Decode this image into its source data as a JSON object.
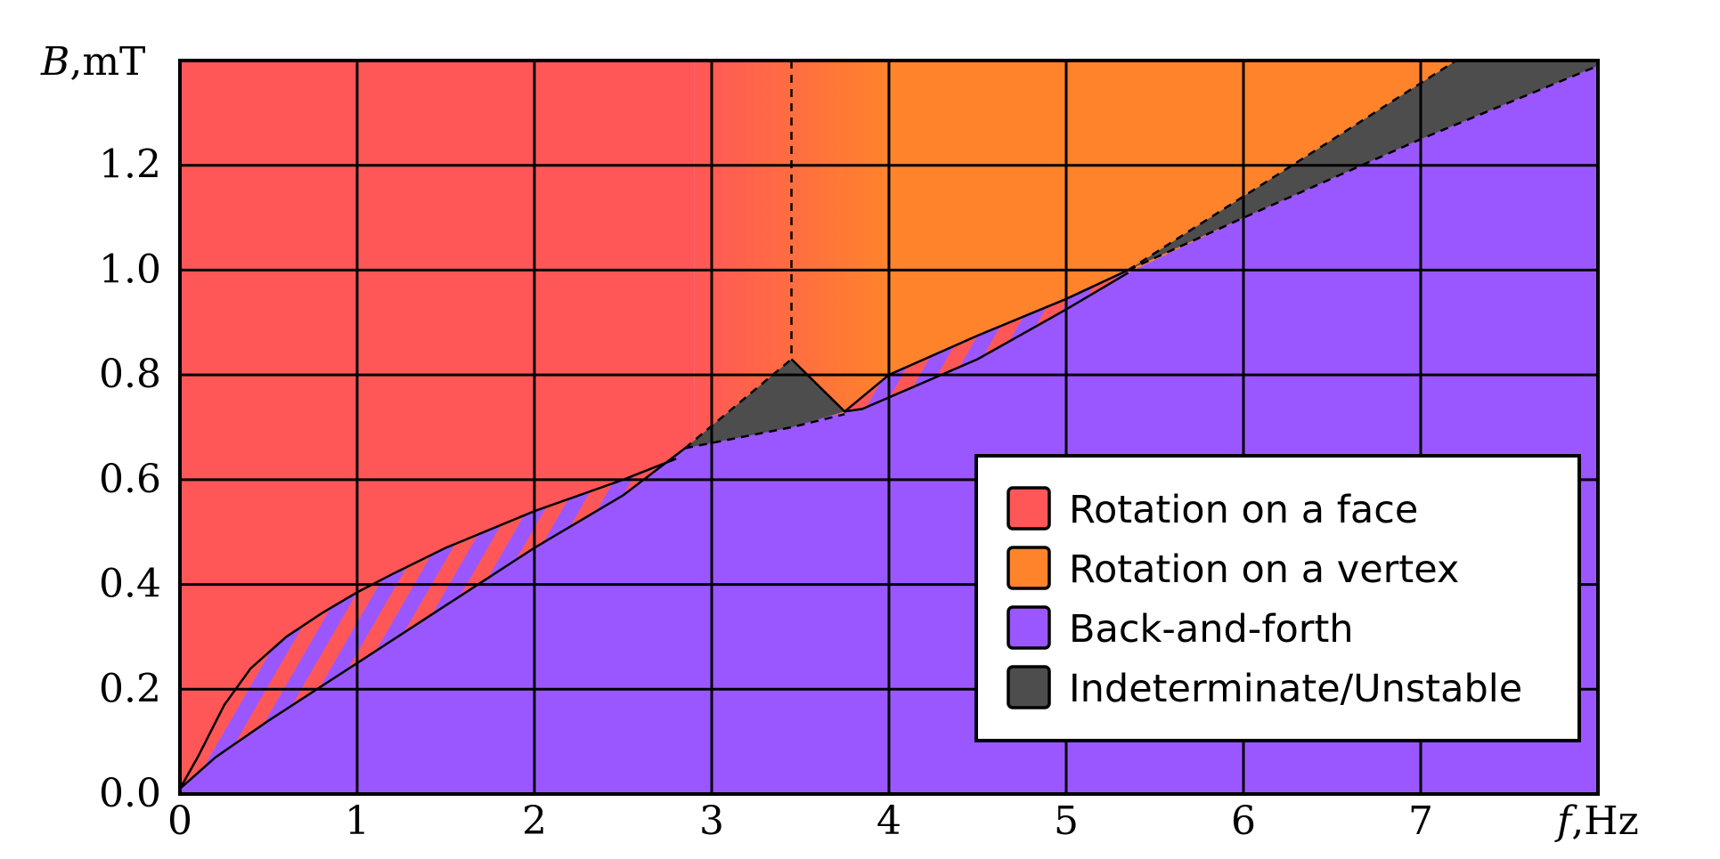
{
  "chart_data": {
    "type": "area",
    "title": "",
    "xlabel": {
      "var": "f",
      "unit": ",Hz"
    },
    "ylabel": {
      "var": "B",
      "unit": ",mT"
    },
    "xlim": [
      0,
      8
    ],
    "ylim": [
      0,
      1.4
    ],
    "x_ticks": [
      0,
      1,
      2,
      3,
      4,
      5,
      6,
      7
    ],
    "x_tick_labels": [
      "0",
      "1",
      "2",
      "3",
      "4",
      "5",
      "6",
      "7"
    ],
    "y_ticks": [
      0,
      0.2,
      0.4,
      0.6,
      0.8,
      1.0,
      1.2
    ],
    "y_tick_labels": [
      "0.0",
      "0.2",
      "0.4",
      "0.6",
      "0.8",
      "1.0",
      "1.2"
    ],
    "grid": true,
    "legend_position": "bottom-right",
    "colors": {
      "face": "#ff5757",
      "vertex": "#ff832b",
      "back_and_forth": "#9b57ff",
      "unstable": "#4d4d4d"
    },
    "series": [
      {
        "key": "face",
        "name": "Rotation on a face"
      },
      {
        "key": "vertex",
        "name": "Rotation on a vertex"
      },
      {
        "key": "back_and_forth",
        "name": "Back-and-forth"
      },
      {
        "key": "unstable",
        "name": "Indeterminate/Unstable"
      }
    ],
    "boundaries": {
      "upper_curve": [
        [
          0,
          0.01
        ],
        [
          0.1,
          0.07
        ],
        [
          0.25,
          0.17
        ],
        [
          0.4,
          0.24
        ],
        [
          0.6,
          0.3
        ],
        [
          0.8,
          0.345
        ],
        [
          1.0,
          0.385
        ],
        [
          1.2,
          0.42
        ],
        [
          1.5,
          0.47
        ],
        [
          2.0,
          0.54
        ],
        [
          2.5,
          0.6
        ],
        [
          2.8,
          0.64
        ],
        [
          3.0,
          0.66
        ],
        [
          3.45,
          0.7
        ],
        [
          3.75,
          0.72
        ],
        [
          3.85,
          0.725
        ],
        [
          3.95,
          0.73
        ]
      ],
      "lower_curve": [
        [
          0,
          0.01
        ],
        [
          0.2,
          0.07
        ],
        [
          0.5,
          0.14
        ],
        [
          1.0,
          0.25
        ],
        [
          1.5,
          0.36
        ],
        [
          2.0,
          0.47
        ],
        [
          2.5,
          0.57
        ],
        [
          2.85,
          0.66
        ],
        [
          3.45,
          0.705
        ],
        [
          3.85,
          0.735
        ],
        [
          4.5,
          0.83
        ],
        [
          5.0,
          0.925
        ],
        [
          5.35,
          0.995
        ]
      ],
      "face_vertex_dashed_line_x": 3.45,
      "vertex_lower_curve": [
        [
          3.45,
          0.83
        ],
        [
          3.75,
          0.73
        ],
        [
          4.0,
          0.8
        ],
        [
          4.5,
          0.875
        ],
        [
          5.0,
          0.945
        ],
        [
          5.35,
          1.0
        ]
      ],
      "unstable_left_triangle": [
        [
          2.85,
          0.66
        ],
        [
          3.45,
          0.83
        ],
        [
          3.75,
          0.73
        ],
        [
          3.45,
          0.7
        ]
      ],
      "unstable_wedge": [
        [
          5.35,
          1.0
        ],
        [
          7.2,
          1.4
        ],
        [
          8.0,
          1.4
        ],
        [
          8.0,
          1.39
        ],
        [
          7.0,
          1.25
        ],
        [
          6.0,
          1.1
        ],
        [
          5.35,
          1.0
        ]
      ]
    }
  }
}
